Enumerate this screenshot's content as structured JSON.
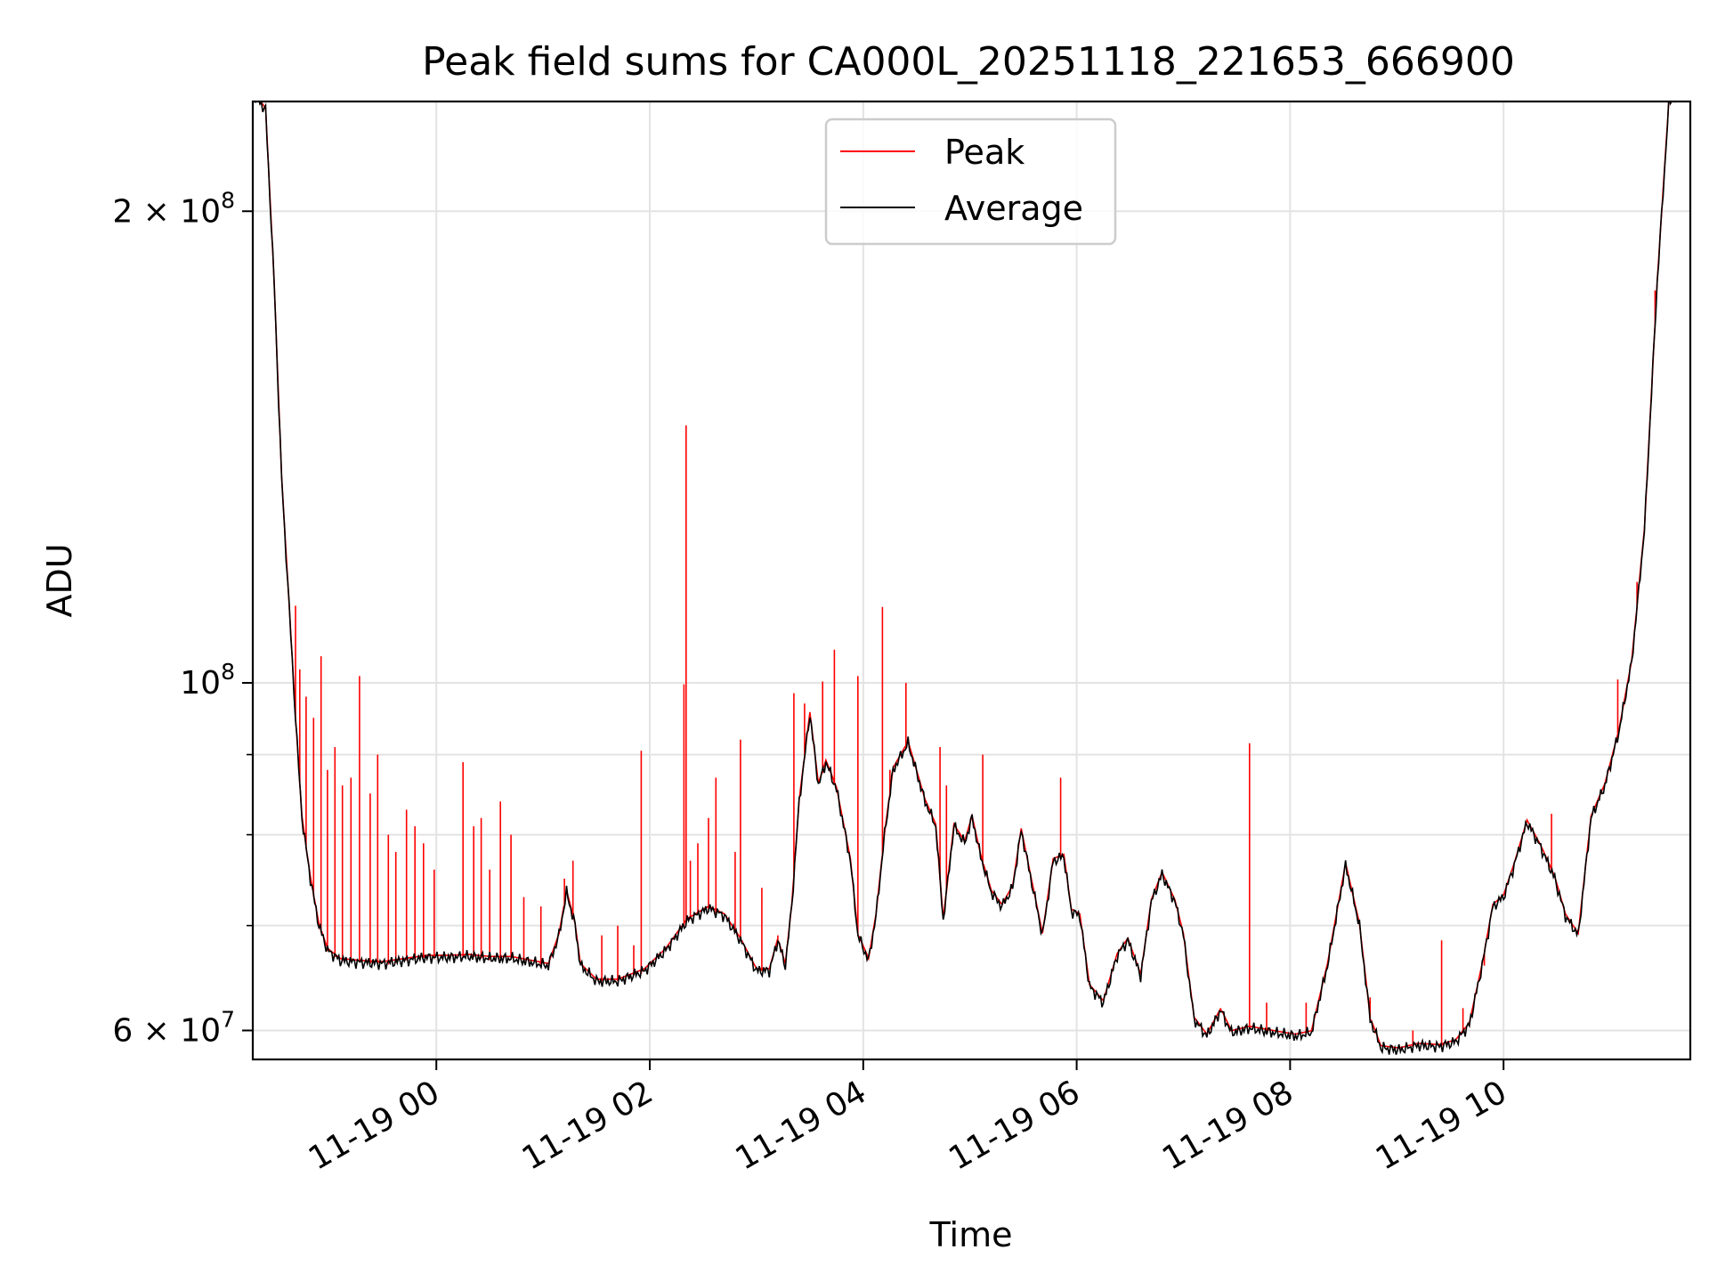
{
  "chart_data": {
    "type": "line",
    "title": "Peak field sums for CA000L_20251118_221653_666900",
    "xlabel": "Time",
    "ylabel": "ADU",
    "yscale": "log",
    "ylim": [
      57500000,
      235000000
    ],
    "xlim_hours": [
      -1.72,
      11.75
    ],
    "grid": true,
    "legend_location": "upper center",
    "x_ticks": [
      {
        "value": 0,
        "label": "11-19 00"
      },
      {
        "value": 2,
        "label": "11-19 02"
      },
      {
        "value": 4,
        "label": "11-19 04"
      },
      {
        "value": 6,
        "label": "11-19 06"
      },
      {
        "value": 8,
        "label": "11-19 08"
      },
      {
        "value": 10,
        "label": "11-19 10"
      }
    ],
    "y_major_ticks": [
      {
        "value": 60000000,
        "label": "6 × 10⁷",
        "mantissa": "6 × 10",
        "exp": "7"
      },
      {
        "value": 100000000,
        "label": "10⁸",
        "mantissa": "10",
        "exp": "8"
      },
      {
        "value": 200000000,
        "label": "2 × 10⁸",
        "mantissa": "2 × 10",
        "exp": "8"
      }
    ],
    "y_minor_ticks": [
      70000000,
      80000000,
      90000000
    ],
    "series": [
      {
        "name": "Peak",
        "color": "#ff0000",
        "spikes": [
          [
            -1.32,
            112
          ],
          [
            -1.28,
            102
          ],
          [
            -1.22,
            98
          ],
          [
            -1.15,
            95
          ],
          [
            -1.08,
            104
          ],
          [
            -1.02,
            88
          ],
          [
            -0.95,
            91
          ],
          [
            -0.88,
            86
          ],
          [
            -0.8,
            87
          ],
          [
            -0.72,
            101
          ],
          [
            -0.62,
            85
          ],
          [
            -0.55,
            90
          ],
          [
            -0.45,
            80
          ],
          [
            -0.38,
            78
          ],
          [
            -0.28,
            83
          ],
          [
            -0.2,
            81
          ],
          [
            -0.12,
            79
          ],
          [
            -0.02,
            76
          ],
          [
            0.25,
            89
          ],
          [
            0.35,
            81
          ],
          [
            0.42,
            82
          ],
          [
            0.5,
            76
          ],
          [
            0.6,
            84
          ],
          [
            0.7,
            80
          ],
          [
            0.82,
            73
          ],
          [
            0.98,
            72
          ],
          [
            1.2,
            75
          ],
          [
            1.28,
            77
          ],
          [
            1.55,
            69
          ],
          [
            1.7,
            70
          ],
          [
            1.85,
            68
          ],
          [
            1.92,
            90.5
          ],
          [
            2.32,
            99.8
          ],
          [
            2.34,
            146
          ],
          [
            2.38,
            77
          ],
          [
            2.45,
            79
          ],
          [
            2.55,
            82
          ],
          [
            2.62,
            87
          ],
          [
            2.8,
            78
          ],
          [
            2.85,
            92
          ],
          [
            3.05,
            74
          ],
          [
            3.2,
            69
          ],
          [
            3.35,
            98.5
          ],
          [
            3.45,
            97
          ],
          [
            3.62,
            100.2
          ],
          [
            3.73,
            105
          ],
          [
            3.95,
            101
          ],
          [
            4.18,
            111.8
          ],
          [
            4.25,
            88
          ],
          [
            4.4,
            100
          ],
          [
            4.72,
            91
          ],
          [
            4.78,
            86
          ],
          [
            5.12,
            90
          ],
          [
            5.85,
            87
          ],
          [
            7.35,
            62
          ],
          [
            7.62,
            91.5
          ],
          [
            7.78,
            62.5
          ],
          [
            8.15,
            62.5
          ],
          [
            8.75,
            63
          ],
          [
            9.15,
            60
          ],
          [
            9.42,
            68.5
          ],
          [
            9.62,
            62
          ],
          [
            9.82,
            66
          ],
          [
            10.45,
            82.5
          ],
          [
            10.8,
            80
          ],
          [
            11.07,
            100.5
          ],
          [
            11.25,
            116
          ],
          [
            11.42,
            178
          ]
        ]
      },
      {
        "name": "Average",
        "color": "#000000",
        "points": [
          [
            -1.72,
            238
          ],
          [
            -1.6,
            232
          ],
          [
            -1.52,
            180
          ],
          [
            -1.45,
            135
          ],
          [
            -1.38,
            112
          ],
          [
            -1.32,
            95
          ],
          [
            -1.26,
            82
          ],
          [
            -1.18,
            75
          ],
          [
            -1.1,
            70
          ],
          [
            -1.02,
            67.5
          ],
          [
            -0.9,
            66.5
          ],
          [
            -0.7,
            66.3
          ],
          [
            -0.5,
            66.2
          ],
          [
            -0.3,
            66.5
          ],
          [
            -0.1,
            66.8
          ],
          [
            0.1,
            66.8
          ],
          [
            0.3,
            66.9
          ],
          [
            0.5,
            66.7
          ],
          [
            0.7,
            66.7
          ],
          [
            0.9,
            66.3
          ],
          [
            1.05,
            66.0
          ],
          [
            1.15,
            69
          ],
          [
            1.22,
            73.5
          ],
          [
            1.3,
            70
          ],
          [
            1.35,
            66
          ],
          [
            1.5,
            64.5
          ],
          [
            1.7,
            64.5
          ],
          [
            1.95,
            65.5
          ],
          [
            2.15,
            67.5
          ],
          [
            2.35,
            70.5
          ],
          [
            2.55,
            71.8
          ],
          [
            2.7,
            71
          ],
          [
            2.85,
            68.5
          ],
          [
            3.0,
            65.5
          ],
          [
            3.12,
            65.5
          ],
          [
            3.2,
            68.5
          ],
          [
            3.27,
            66
          ],
          [
            3.33,
            72
          ],
          [
            3.4,
            84
          ],
          [
            3.5,
            95.5
          ],
          [
            3.58,
            86
          ],
          [
            3.65,
            89
          ],
          [
            3.75,
            85.5
          ],
          [
            3.88,
            77
          ],
          [
            3.95,
            69
          ],
          [
            4.05,
            66.5
          ],
          [
            4.12,
            71
          ],
          [
            4.2,
            80
          ],
          [
            4.28,
            88
          ],
          [
            4.42,
            91.5
          ],
          [
            4.58,
            84
          ],
          [
            4.68,
            81
          ],
          [
            4.75,
            70.5
          ],
          [
            4.85,
            81
          ],
          [
            4.95,
            79
          ],
          [
            5.02,
            82
          ],
          [
            5.1,
            77.5
          ],
          [
            5.2,
            73.5
          ],
          [
            5.3,
            72
          ],
          [
            5.4,
            74
          ],
          [
            5.48,
            80.5
          ],
          [
            5.58,
            74.5
          ],
          [
            5.68,
            69
          ],
          [
            5.78,
            77
          ],
          [
            5.88,
            77.5
          ],
          [
            5.95,
            71.5
          ],
          [
            6.03,
            71
          ],
          [
            6.12,
            64
          ],
          [
            6.25,
            62.5
          ],
          [
            6.38,
            67
          ],
          [
            6.48,
            68.5
          ],
          [
            6.6,
            65
          ],
          [
            6.7,
            72.5
          ],
          [
            6.8,
            75.5
          ],
          [
            6.92,
            72.5
          ],
          [
            7.0,
            69
          ],
          [
            7.1,
            61
          ],
          [
            7.22,
            59.5
          ],
          [
            7.35,
            61.8
          ],
          [
            7.45,
            59.8
          ],
          [
            7.62,
            60.2
          ],
          [
            7.85,
            59.8
          ],
          [
            8.05,
            59.5
          ],
          [
            8.2,
            59.8
          ],
          [
            8.35,
            66
          ],
          [
            8.52,
            76.5
          ],
          [
            8.65,
            70
          ],
          [
            8.75,
            61
          ],
          [
            8.85,
            58.5
          ],
          [
            9.02,
            58.3
          ],
          [
            9.2,
            58.7
          ],
          [
            9.4,
            58.6
          ],
          [
            9.55,
            59
          ],
          [
            9.68,
            60.5
          ],
          [
            9.8,
            66
          ],
          [
            9.9,
            72
          ],
          [
            10.0,
            73
          ],
          [
            10.1,
            76.5
          ],
          [
            10.22,
            81.5
          ],
          [
            10.35,
            78.5
          ],
          [
            10.48,
            75
          ],
          [
            10.58,
            71
          ],
          [
            10.7,
            69
          ],
          [
            10.82,
            82
          ],
          [
            10.95,
            86
          ],
          [
            11.08,
            93
          ],
          [
            11.2,
            103
          ],
          [
            11.32,
            125
          ],
          [
            11.44,
            180
          ],
          [
            11.55,
            235
          ],
          [
            11.75,
            240
          ]
        ]
      }
    ]
  }
}
